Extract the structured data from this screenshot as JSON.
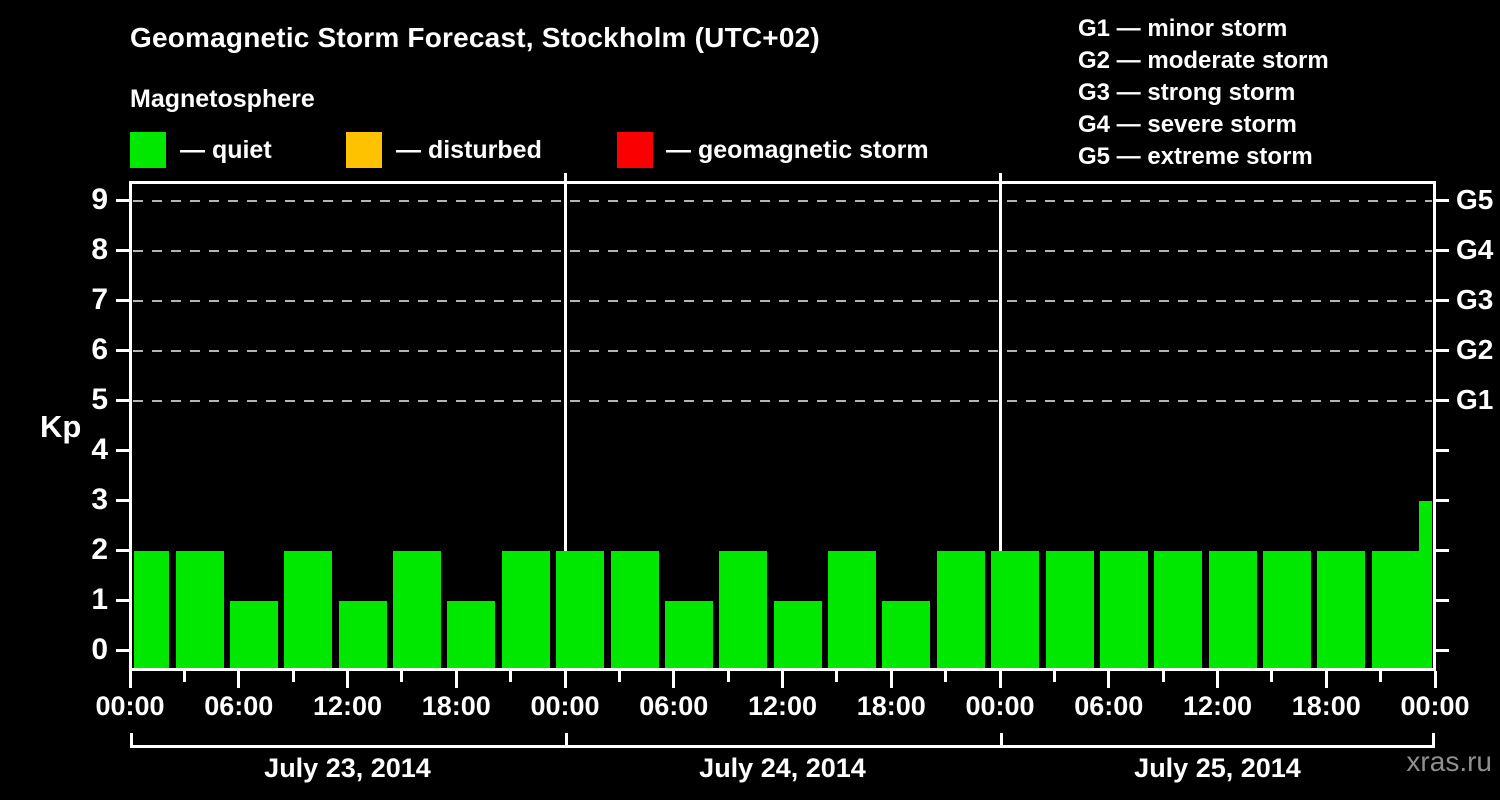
{
  "header": {
    "title": "Geomagnetic Storm Forecast, Stockholm (UTC+02)",
    "subtitle": "Magnetosphere"
  },
  "legend": {
    "items": [
      {
        "name": "quiet",
        "label": "— quiet",
        "color": "#00e800"
      },
      {
        "name": "disturbed",
        "label": "— disturbed",
        "color": "#ffc200"
      },
      {
        "name": "geomagnetic-storm",
        "label": "— geomagnetic storm",
        "color": "#fa0000"
      }
    ]
  },
  "g_legend": [
    "G1 — minor storm",
    "G2 — moderate storm",
    "G3 — strong storm",
    "G4 — severe storm",
    "G5 — extreme storm"
  ],
  "watermark": "xras.ru",
  "chart_data": {
    "type": "bar",
    "title": "Geomagnetic Storm Forecast, Stockholm (UTC+02)",
    "ylabel": "Kp",
    "ylim": [
      0,
      9
    ],
    "grid": "dashed horizontal lines at Kp 5-9 only",
    "legend_position": "top",
    "yticks_left": [
      0,
      1,
      2,
      3,
      4,
      5,
      6,
      7,
      8,
      9
    ],
    "yticks_right": [
      {
        "kp": 5,
        "label": "G1"
      },
      {
        "kp": 6,
        "label": "G2"
      },
      {
        "kp": 7,
        "label": "G3"
      },
      {
        "kp": 8,
        "label": "G4"
      },
      {
        "kp": 9,
        "label": "G5"
      }
    ],
    "grid_levels": [
      5,
      6,
      7,
      8,
      9
    ],
    "hours_per_bar": 3,
    "x_major_label_cycle": [
      "00:00",
      "06:00",
      "12:00",
      "18:00"
    ],
    "bar_color": "#00e800",
    "days": [
      {
        "date": "July 23, 2014",
        "kp_values": [
          2,
          2,
          1,
          2,
          1,
          2,
          1,
          2
        ]
      },
      {
        "date": "July 24, 2014",
        "kp_values": [
          2,
          2,
          1,
          2,
          1,
          2,
          1,
          2
        ]
      },
      {
        "date": "July 25, 2014",
        "kp_values": [
          2,
          2,
          2,
          2,
          2,
          2,
          2,
          2
        ]
      }
    ],
    "next_interval_partial": {
      "kp": 3
    }
  }
}
